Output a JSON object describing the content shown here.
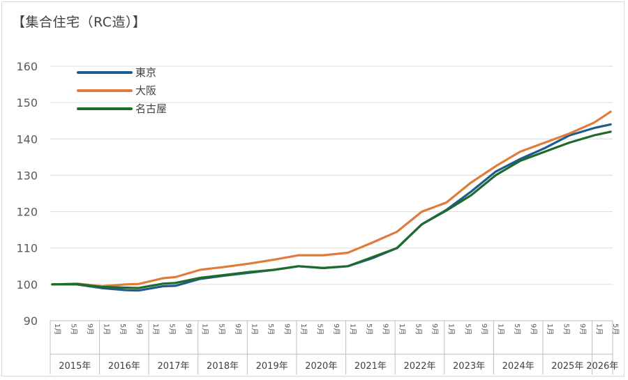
{
  "chart_data": {
    "type": "line",
    "title": "【集合住宅（RC造）】",
    "xlabel": "",
    "ylabel": "",
    "ylim": [
      90,
      160
    ],
    "yticks": [
      90,
      100,
      110,
      120,
      130,
      140,
      150,
      160
    ],
    "grid": true,
    "legend_position": "top-left",
    "x_start": "2015-01",
    "x_end": "2026-05",
    "month_tick_labels": [
      "1月",
      "5月",
      "9月"
    ],
    "year_labels": [
      "2015年",
      "2016年",
      "2017年",
      "2018年",
      "2019年",
      "2020年",
      "2021年",
      "2022年",
      "2023年",
      "2024年",
      "2025年",
      "2026年"
    ],
    "series": [
      {
        "name": "東京",
        "color": "#1f5b8c",
        "points": [
          [
            "2015-01",
            100
          ],
          [
            "2015-07",
            100
          ],
          [
            "2016-01",
            99
          ],
          [
            "2016-07",
            98.4
          ],
          [
            "2016-10",
            98.3
          ],
          [
            "2017-04",
            99.5
          ],
          [
            "2017-07",
            99.6
          ],
          [
            "2018-01",
            101.5
          ],
          [
            "2018-07",
            102.4
          ],
          [
            "2019-01",
            103.2
          ],
          [
            "2019-07",
            104
          ],
          [
            "2020-01",
            105
          ],
          [
            "2020-07",
            104.5
          ],
          [
            "2021-01",
            105
          ],
          [
            "2021-07",
            107.2
          ],
          [
            "2022-01",
            110
          ],
          [
            "2022-07",
            116.5
          ],
          [
            "2023-01",
            120.5
          ],
          [
            "2023-07",
            125.5
          ],
          [
            "2024-01",
            131
          ],
          [
            "2024-07",
            134.5
          ],
          [
            "2025-01",
            137.5
          ],
          [
            "2025-07",
            141
          ],
          [
            "2026-01",
            143
          ],
          [
            "2026-05",
            144
          ]
        ]
      },
      {
        "name": "大阪",
        "color": "#e07b39",
        "points": [
          [
            "2015-01",
            100
          ],
          [
            "2015-07",
            100.2
          ],
          [
            "2016-01",
            99.5
          ],
          [
            "2016-07",
            100
          ],
          [
            "2016-10",
            100.1
          ],
          [
            "2017-04",
            101.7
          ],
          [
            "2017-07",
            102
          ],
          [
            "2018-01",
            104
          ],
          [
            "2018-07",
            104.8
          ],
          [
            "2019-01",
            105.7
          ],
          [
            "2019-07",
            106.8
          ],
          [
            "2020-01",
            108
          ],
          [
            "2020-07",
            108
          ],
          [
            "2021-01",
            108.7
          ],
          [
            "2021-07",
            111.5
          ],
          [
            "2022-01",
            114.5
          ],
          [
            "2022-07",
            120
          ],
          [
            "2023-01",
            122.5
          ],
          [
            "2023-07",
            128
          ],
          [
            "2024-01",
            132.5
          ],
          [
            "2024-07",
            136.5
          ],
          [
            "2025-01",
            139
          ],
          [
            "2025-07",
            141.5
          ],
          [
            "2026-01",
            144.5
          ],
          [
            "2026-05",
            147.5
          ]
        ]
      },
      {
        "name": "名古屋",
        "color": "#1e6b2a",
        "points": [
          [
            "2015-01",
            100
          ],
          [
            "2015-07",
            100.1
          ],
          [
            "2016-01",
            99.3
          ],
          [
            "2016-07",
            99.1
          ],
          [
            "2016-10",
            99
          ],
          [
            "2017-04",
            100.2
          ],
          [
            "2017-07",
            100.4
          ],
          [
            "2018-01",
            101.8
          ],
          [
            "2018-07",
            102.6
          ],
          [
            "2019-01",
            103.4
          ],
          [
            "2019-07",
            104
          ],
          [
            "2020-01",
            105
          ],
          [
            "2020-07",
            104.5
          ],
          [
            "2021-01",
            105
          ],
          [
            "2021-07",
            107.5
          ],
          [
            "2022-01",
            110
          ],
          [
            "2022-07",
            116.5
          ],
          [
            "2023-01",
            120.3
          ],
          [
            "2023-07",
            124.5
          ],
          [
            "2024-01",
            130
          ],
          [
            "2024-07",
            134
          ],
          [
            "2025-01",
            136.5
          ],
          [
            "2025-07",
            139
          ],
          [
            "2026-01",
            141
          ],
          [
            "2026-05",
            142
          ]
        ]
      }
    ]
  }
}
